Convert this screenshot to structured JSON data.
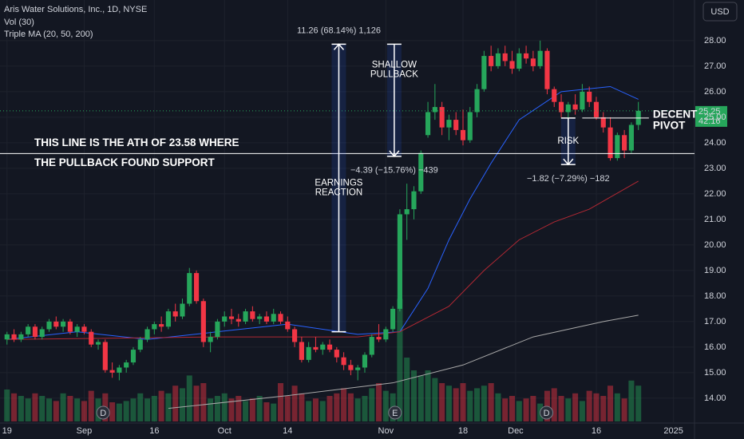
{
  "chart_data": {
    "type": "candlestick",
    "title": "Aris Water Solutions, Inc., 1D, NYSE",
    "indicators": [
      "Vol (30)",
      "Triple MA (20, 50, 200)"
    ],
    "currency": "USD",
    "up_color": "#26a65b",
    "down_color": "#f23645",
    "ylim": [
      13.09,
      29.59
    ],
    "xlim": [
      -1,
      98
    ],
    "yticks": [
      {
        "value": 14,
        "label": "14.00"
      },
      {
        "value": 15,
        "label": "15.00"
      },
      {
        "value": 16,
        "label": "16.00"
      },
      {
        "value": 17,
        "label": "17.00"
      },
      {
        "value": 18,
        "label": "18.00"
      },
      {
        "value": 19,
        "label": "19.00"
      },
      {
        "value": 20,
        "label": "20.00"
      },
      {
        "value": 21,
        "label": "21.00"
      },
      {
        "value": 22,
        "label": "22.00"
      },
      {
        "value": 23,
        "label": "23.00"
      },
      {
        "value": 24,
        "label": "24.00"
      },
      {
        "value": 25,
        "label": "25.00"
      },
      {
        "value": 26,
        "label": "26.00"
      },
      {
        "value": 27,
        "label": "27.00"
      },
      {
        "value": 28,
        "label": "28.00"
      }
    ],
    "xticks": [
      {
        "value": 0,
        "label": "19"
      },
      {
        "value": 11,
        "label": "Sep"
      },
      {
        "value": 21,
        "label": "16"
      },
      {
        "value": 31,
        "label": "Oct"
      },
      {
        "value": 40,
        "label": "14"
      },
      {
        "value": 54,
        "label": "Nov"
      },
      {
        "value": 65,
        "label": "18"
      },
      {
        "value": 72.5,
        "label": "Dec"
      },
      {
        "value": 84,
        "label": "16"
      },
      {
        "value": 95,
        "label": "2025"
      }
    ],
    "ohlc": [
      [
        16.3,
        16.6,
        16.1,
        16.5
      ],
      [
        16.5,
        16.7,
        16.2,
        16.3
      ],
      [
        16.3,
        16.6,
        16.2,
        16.5
      ],
      [
        16.5,
        16.9,
        16.4,
        16.8
      ],
      [
        16.8,
        16.9,
        16.3,
        16.4
      ],
      [
        16.4,
        16.8,
        16.3,
        16.7
      ],
      [
        16.7,
        17.1,
        16.6,
        17.0
      ],
      [
        17.0,
        17.2,
        16.7,
        16.8
      ],
      [
        16.8,
        17.1,
        16.6,
        17.0
      ],
      [
        17.0,
        17.1,
        16.5,
        16.6
      ],
      [
        16.6,
        16.9,
        16.4,
        16.8
      ],
      [
        16.8,
        16.9,
        16.5,
        16.6
      ],
      [
        16.6,
        16.7,
        16.0,
        16.1
      ],
      [
        16.1,
        16.3,
        15.9,
        16.2
      ],
      [
        16.2,
        16.3,
        15.0,
        15.1
      ],
      [
        15.1,
        15.4,
        14.8,
        15.0
      ],
      [
        15.0,
        15.3,
        14.7,
        15.2
      ],
      [
        15.2,
        15.5,
        15.0,
        15.4
      ],
      [
        15.4,
        16.0,
        15.3,
        15.9
      ],
      [
        15.9,
        16.4,
        15.8,
        16.3
      ],
      [
        16.3,
        16.8,
        16.2,
        16.7
      ],
      [
        16.7,
        17.0,
        16.5,
        16.9
      ],
      [
        16.9,
        17.2,
        16.6,
        16.8
      ],
      [
        16.8,
        17.5,
        16.7,
        17.4
      ],
      [
        17.4,
        17.7,
        17.0,
        17.2
      ],
      [
        17.2,
        17.9,
        17.1,
        17.7
      ],
      [
        17.7,
        19.1,
        17.6,
        18.9
      ],
      [
        18.9,
        19.0,
        17.7,
        17.8
      ],
      [
        17.8,
        17.9,
        16.0,
        16.2
      ],
      [
        16.2,
        16.6,
        15.8,
        16.4
      ],
      [
        16.4,
        17.1,
        16.3,
        17.0
      ],
      [
        17.0,
        17.4,
        16.8,
        17.2
      ],
      [
        17.2,
        17.5,
        16.9,
        17.1
      ],
      [
        17.1,
        17.3,
        16.8,
        17.0
      ],
      [
        17.0,
        17.5,
        16.9,
        17.4
      ],
      [
        17.4,
        17.6,
        17.0,
        17.1
      ],
      [
        17.1,
        17.3,
        16.9,
        17.2
      ],
      [
        17.2,
        17.4,
        16.9,
        17.0
      ],
      [
        17.0,
        17.5,
        16.9,
        17.3
      ],
      [
        17.3,
        17.4,
        16.9,
        17.0
      ],
      [
        17.0,
        17.2,
        16.6,
        16.7
      ],
      [
        16.7,
        16.8,
        16.0,
        16.2
      ],
      [
        16.2,
        16.4,
        15.4,
        15.5
      ],
      [
        15.5,
        16.2,
        15.4,
        16.0
      ],
      [
        16.0,
        16.4,
        15.8,
        15.9
      ],
      [
        15.9,
        16.2,
        15.7,
        16.1
      ],
      [
        16.1,
        16.3,
        15.8,
        15.9
      ],
      [
        15.9,
        16.0,
        15.4,
        15.6
      ],
      [
        15.6,
        15.8,
        15.1,
        15.3
      ],
      [
        15.3,
        15.5,
        14.9,
        15.1
      ],
      [
        15.1,
        15.3,
        14.7,
        15.2
      ],
      [
        15.2,
        15.8,
        15.0,
        15.7
      ],
      [
        15.7,
        16.5,
        15.6,
        16.4
      ],
      [
        16.4,
        16.9,
        16.2,
        16.3
      ],
      [
        16.3,
        16.8,
        16.2,
        16.7
      ],
      [
        16.7,
        17.6,
        16.6,
        17.5
      ],
      [
        17.5,
        21.4,
        17.4,
        21.2
      ],
      [
        21.2,
        22.4,
        20.2,
        21.4
      ],
      [
        21.4,
        22.3,
        21.0,
        22.1
      ],
      [
        22.1,
        23.7,
        22.0,
        23.6
      ],
      [
        24.3,
        25.6,
        24.2,
        25.2
      ],
      [
        25.2,
        26.3,
        24.9,
        25.4
      ],
      [
        25.4,
        25.6,
        24.3,
        24.6
      ],
      [
        24.6,
        25.1,
        24.1,
        24.9
      ],
      [
        24.9,
        25.2,
        24.3,
        24.5
      ],
      [
        24.5,
        25.3,
        23.9,
        24.1
      ],
      [
        24.1,
        25.4,
        24.0,
        25.2
      ],
      [
        25.2,
        26.3,
        25.0,
        26.1
      ],
      [
        26.1,
        27.6,
        26.0,
        27.4
      ],
      [
        27.4,
        27.8,
        26.8,
        27.0
      ],
      [
        27.0,
        27.7,
        26.9,
        27.5
      ],
      [
        27.5,
        27.8,
        27.0,
        27.2
      ],
      [
        27.2,
        27.6,
        26.7,
        26.9
      ],
      [
        26.9,
        27.7,
        26.8,
        27.5
      ],
      [
        27.5,
        27.8,
        27.1,
        27.3
      ],
      [
        27.3,
        27.6,
        26.8,
        27.0
      ],
      [
        27.0,
        28.0,
        26.9,
        27.6
      ],
      [
        27.6,
        27.7,
        25.9,
        26.1
      ],
      [
        26.1,
        26.2,
        25.4,
        25.6
      ],
      [
        25.6,
        25.9,
        25.0,
        25.2
      ],
      [
        25.2,
        25.6,
        24.9,
        25.5
      ],
      [
        25.5,
        25.9,
        25.1,
        25.3
      ],
      [
        25.3,
        26.3,
        25.2,
        26.0
      ],
      [
        26.0,
        26.2,
        25.4,
        25.6
      ],
      [
        25.6,
        25.8,
        24.9,
        25.0
      ],
      [
        25.0,
        25.2,
        24.4,
        24.6
      ],
      [
        24.6,
        25.0,
        23.3,
        23.4
      ],
      [
        23.4,
        24.4,
        23.3,
        24.3
      ],
      [
        24.3,
        24.5,
        23.4,
        23.7
      ],
      [
        23.7,
        24.8,
        23.6,
        24.7
      ],
      [
        24.7,
        25.6,
        24.5,
        25.25
      ]
    ],
    "volume": [
      25,
      22,
      20,
      18,
      22,
      20,
      18,
      16,
      22,
      20,
      18,
      16,
      24,
      18,
      22,
      15,
      14,
      16,
      18,
      22,
      18,
      20,
      24,
      22,
      28,
      26,
      36,
      28,
      30,
      18,
      20,
      22,
      18,
      20,
      16,
      18,
      20,
      15,
      14,
      30,
      20,
      28,
      22,
      16,
      18,
      16,
      20,
      22,
      26,
      22,
      18,
      20,
      26,
      30,
      24,
      22,
      96,
      50,
      40,
      36,
      40,
      34,
      30,
      28,
      26,
      30,
      24,
      26,
      28,
      30,
      22,
      18,
      20,
      16,
      18,
      20,
      14,
      24,
      26,
      20,
      18,
      22,
      16,
      24,
      22,
      20,
      28,
      22,
      18,
      32,
      28
    ],
    "vlim": [
      0,
      100
    ],
    "moving_averages": [
      {
        "color": "#2962ff",
        "x": [
          0,
          10,
          20,
          30,
          40,
          50,
          56,
          60,
          63,
          66,
          69,
          73,
          79,
          86,
          90
        ],
        "values": [
          16.3,
          16.6,
          16.3,
          16.6,
          16.9,
          16.5,
          16.6,
          18.3,
          20.2,
          21.8,
          23.2,
          24.9,
          26.0,
          26.2,
          25.7
        ]
      },
      {
        "color": "#b22833",
        "x": [
          0,
          30,
          50,
          56,
          63,
          68,
          73,
          78,
          83,
          90
        ],
        "values": [
          16.3,
          16.4,
          16.4,
          16.6,
          17.6,
          19.0,
          20.2,
          20.9,
          21.4,
          22.5
        ]
      },
      {
        "color": "#a8a8a8",
        "x": [
          23,
          40,
          55,
          65,
          75,
          85,
          90
        ],
        "values": [
          13.6,
          14.1,
          14.6,
          15.3,
          16.4,
          17.0,
          17.25
        ]
      }
    ],
    "events": [
      {
        "index": 13.7,
        "label": "D"
      },
      {
        "index": 55.3,
        "label": "E"
      },
      {
        "index": 76.9,
        "label": "D"
      }
    ],
    "measures": [
      {
        "index": 47.3,
        "from": 16.6,
        "to": 27.86,
        "label": "11.26 (68.14%) 1,126",
        "text": [
          "EARNINGS",
          "REACTION"
        ]
      },
      {
        "index": 55.2,
        "from": 27.86,
        "to": 23.47,
        "label": "−4.39 (−15.76%) −439",
        "text": [
          "SHALLOW",
          "PULLBACK"
        ]
      },
      {
        "index": 80,
        "from": 24.97,
        "to": 23.15,
        "label": "−1.82 (−7.29%) −182",
        "text": [
          "RISK"
        ]
      }
    ],
    "ath_line": {
      "value": 23.58,
      "text": [
        "THIS LINE IS  THE ATH OF 23.58 WHERE",
        "THE PULLBACK FOUND SUPPORT"
      ]
    },
    "pivot_line": {
      "value": 24.97,
      "from": 82,
      "to": 91.5,
      "text": [
        "DECENT",
        "PIVOT"
      ]
    },
    "last_price": {
      "value": 25.25,
      "label": "25.25",
      "countdown": "42:16"
    }
  }
}
